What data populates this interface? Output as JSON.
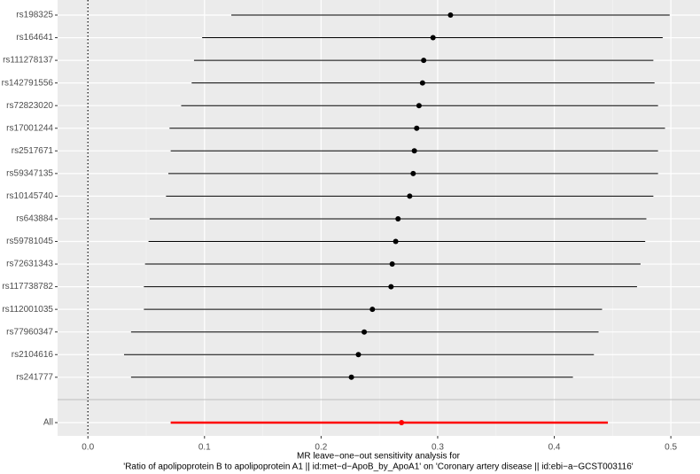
{
  "chart_data": {
    "type": "forest",
    "categories": [
      "rs198325",
      "rs164641",
      "rs111278137",
      "rs142791556",
      "rs72823020",
      "rs17001244",
      "rs2517671",
      "rs59347135",
      "rs10145740",
      "rs643884",
      "rs59781045",
      "rs72631343",
      "rs117738782",
      "rs112001035",
      "rs77960347",
      "rs2104616",
      "rs241777",
      "All"
    ],
    "values": [
      0.311,
      0.296,
      0.288,
      0.287,
      0.284,
      0.282,
      0.28,
      0.279,
      0.276,
      0.266,
      0.264,
      0.261,
      0.26,
      0.244,
      0.237,
      0.232,
      0.226,
      0.269
    ],
    "lower": [
      0.123,
      0.098,
      0.091,
      0.089,
      0.08,
      0.07,
      0.071,
      0.069,
      0.067,
      0.053,
      0.052,
      0.049,
      0.048,
      0.048,
      0.037,
      0.031,
      0.037,
      0.071
    ],
    "upper": [
      0.499,
      0.493,
      0.485,
      0.486,
      0.489,
      0.495,
      0.489,
      0.489,
      0.485,
      0.479,
      0.478,
      0.474,
      0.471,
      0.441,
      0.438,
      0.434,
      0.416,
      0.446
    ],
    "colors": [
      "#000000",
      "#000000",
      "#000000",
      "#000000",
      "#000000",
      "#000000",
      "#000000",
      "#000000",
      "#000000",
      "#000000",
      "#000000",
      "#000000",
      "#000000",
      "#000000",
      "#000000",
      "#000000",
      "#000000",
      "#ff0000"
    ],
    "xlim": [
      -0.026,
      0.525
    ],
    "xticks": [
      {
        "value": 0,
        "label": "0.0"
      },
      0.1,
      0.2,
      0.3,
      0.4,
      0.5
    ],
    "reference_line": 0,
    "grid": true,
    "xlabel": [
      "MR leave−one−out sensitivity analysis for",
      "'Ratio of apolipoprotein B to apolipoprotein A1 || id:met−d−ApoB_by_ApoA1' on 'Coronary artery disease || id:ebi−a−GCST003116'"
    ]
  }
}
